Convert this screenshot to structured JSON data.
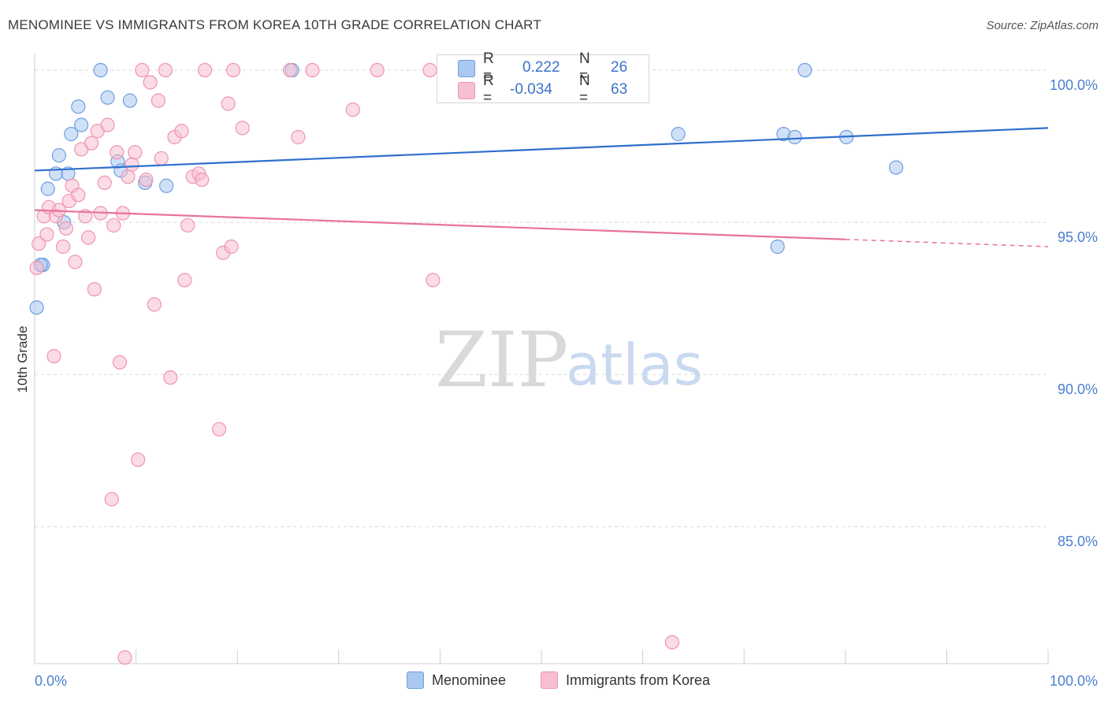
{
  "title": "MENOMINEE VS IMMIGRANTS FROM KOREA 10TH GRADE CORRELATION CHART",
  "source": "Source: ZipAtlas.com",
  "watermark": {
    "zip": "ZIP",
    "atlas": "atlas"
  },
  "legend": {
    "r_label": "R =",
    "n_label": "N =",
    "rows": [
      {
        "r": "0.222",
        "n": "26",
        "color": "#aac8f0"
      },
      {
        "r": "-0.034",
        "n": "63",
        "color": "#f7bfd0"
      }
    ]
  },
  "bottom_legend": [
    {
      "label": "Menominee",
      "color": "#aac8f0"
    },
    {
      "label": "Immigrants from Korea",
      "color": "#f7bfd0"
    }
  ],
  "chart_data": {
    "type": "scatter",
    "xlabel": "",
    "ylabel": "10th Grade",
    "xlim": [
      0,
      100
    ],
    "ylim": [
      80.5,
      100.7
    ],
    "x_tick_labels": [
      "0.0%",
      "100.0%"
    ],
    "y_ticks": [
      85,
      90,
      95,
      100
    ],
    "y_tick_labels": [
      "85.0%",
      "90.0%",
      "95.0%",
      "100.0%"
    ],
    "grid": true,
    "series": [
      {
        "name": "Menominee",
        "color": "#aac8f0",
        "stroke": "#6f9ee0",
        "trend_color": "#2f6fcc",
        "trend": {
          "x0": 0,
          "y0": 96.7,
          "x1": 100,
          "y1": 98.1,
          "solid_to": 100
        },
        "points": [
          [
            0.2,
            92.2
          ],
          [
            0.8,
            93.6
          ],
          [
            1.3,
            96.1
          ],
          [
            2.1,
            96.6
          ],
          [
            2.4,
            97.2
          ],
          [
            2.9,
            95.0
          ],
          [
            3.3,
            96.6
          ],
          [
            3.6,
            97.9
          ],
          [
            4.3,
            98.8
          ],
          [
            4.6,
            98.2
          ],
          [
            6.5,
            100.0
          ],
          [
            7.2,
            99.1
          ],
          [
            8.2,
            97.0
          ],
          [
            8.5,
            96.7
          ],
          [
            9.4,
            99.0
          ],
          [
            10.9,
            96.3
          ],
          [
            13.0,
            96.2
          ],
          [
            25.4,
            100.0
          ],
          [
            63.5,
            97.9
          ],
          [
            73.3,
            94.2
          ],
          [
            73.9,
            97.9
          ],
          [
            75.0,
            97.8
          ],
          [
            76.0,
            100.0
          ],
          [
            80.1,
            97.8
          ],
          [
            85.0,
            96.8
          ],
          [
            0.6,
            93.6
          ]
        ]
      },
      {
        "name": "Immigrants from Korea",
        "color": "#f7bfd0",
        "stroke": "#ef94b0",
        "trend_color": "#e8739a",
        "trend": {
          "x0": 0,
          "y0": 95.4,
          "x1": 100,
          "y1": 94.2,
          "solid_to": 80
        },
        "points": [
          [
            0.2,
            93.5
          ],
          [
            0.4,
            94.3
          ],
          [
            0.9,
            95.2
          ],
          [
            1.2,
            94.6
          ],
          [
            1.4,
            95.5
          ],
          [
            1.9,
            90.6
          ],
          [
            2.1,
            95.2
          ],
          [
            2.4,
            95.4
          ],
          [
            2.8,
            94.2
          ],
          [
            3.1,
            94.8
          ],
          [
            3.4,
            95.7
          ],
          [
            3.7,
            96.2
          ],
          [
            4.0,
            93.7
          ],
          [
            4.3,
            95.9
          ],
          [
            4.6,
            97.4
          ],
          [
            5.0,
            95.2
          ],
          [
            5.3,
            94.5
          ],
          [
            5.6,
            97.6
          ],
          [
            5.9,
            92.8
          ],
          [
            6.2,
            98.0
          ],
          [
            6.5,
            95.3
          ],
          [
            6.9,
            96.3
          ],
          [
            7.2,
            98.2
          ],
          [
            7.8,
            94.9
          ],
          [
            8.1,
            97.3
          ],
          [
            8.4,
            90.4
          ],
          [
            8.7,
            95.3
          ],
          [
            8.9,
            80.7
          ],
          [
            9.2,
            96.5
          ],
          [
            9.6,
            96.9
          ],
          [
            9.9,
            97.3
          ],
          [
            10.2,
            87.2
          ],
          [
            10.6,
            100.0
          ],
          [
            11.0,
            96.4
          ],
          [
            11.4,
            99.6
          ],
          [
            11.8,
            92.3
          ],
          [
            12.2,
            99.0
          ],
          [
            12.5,
            97.1
          ],
          [
            12.9,
            100.0
          ],
          [
            13.4,
            89.9
          ],
          [
            13.8,
            97.8
          ],
          [
            14.5,
            98.0
          ],
          [
            14.8,
            93.1
          ],
          [
            15.1,
            94.9
          ],
          [
            15.6,
            96.5
          ],
          [
            16.2,
            96.6
          ],
          [
            16.5,
            96.4
          ],
          [
            16.8,
            100.0
          ],
          [
            18.2,
            88.2
          ],
          [
            18.6,
            94.0
          ],
          [
            19.1,
            98.9
          ],
          [
            19.4,
            94.2
          ],
          [
            19.6,
            100.0
          ],
          [
            20.5,
            98.1
          ],
          [
            25.2,
            100.0
          ],
          [
            26.0,
            97.8
          ],
          [
            27.4,
            100.0
          ],
          [
            31.4,
            98.7
          ],
          [
            33.8,
            100.0
          ],
          [
            39.0,
            100.0
          ],
          [
            39.3,
            93.1
          ],
          [
            62.9,
            81.2
          ],
          [
            7.6,
            85.9
          ]
        ]
      }
    ]
  }
}
